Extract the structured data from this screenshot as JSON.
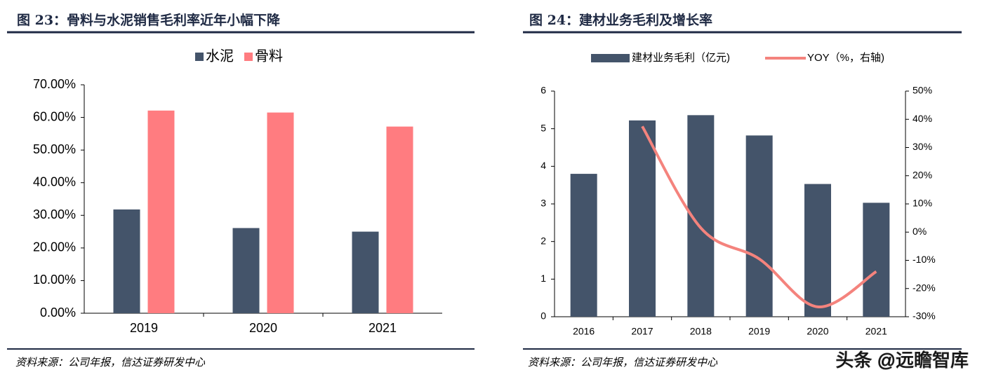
{
  "chart_data": [
    {
      "type": "bar",
      "title": "图 23：骨料与水泥销售毛利率近年小幅下降",
      "categories": [
        "2019",
        "2020",
        "2021"
      ],
      "series": [
        {
          "name": "水泥",
          "color": "#44546a",
          "values": [
            31.8,
            26.1,
            25.0
          ]
        },
        {
          "name": "骨料",
          "color": "#ff7c80",
          "values": [
            62.1,
            61.5,
            57.2
          ]
        }
      ],
      "ylim": [
        0,
        70
      ],
      "yticks": [
        {
          "value": 0,
          "label": "0.00%"
        },
        {
          "value": 10,
          "label": "10.00%"
        },
        {
          "value": 20,
          "label": "20.00%"
        },
        {
          "value": 30,
          "label": "30.00%"
        },
        {
          "value": 40,
          "label": "40.00%"
        },
        {
          "value": 50,
          "label": "50.00%"
        },
        {
          "value": 60,
          "label": "60.00%"
        },
        {
          "value": 70,
          "label": "70.00%"
        }
      ],
      "legend": "top",
      "source": "资料来源：公司年报，信达证券研发中心"
    },
    {
      "type": "bar",
      "title": "图 24：建材业务毛利及增长率",
      "categories": [
        "2016",
        "2017",
        "2018",
        "2019",
        "2020",
        "2021"
      ],
      "series": [
        {
          "name": "建材业务毛利（亿元)",
          "color": "#44546a",
          "values": [
            3.8,
            5.22,
            5.36,
            4.82,
            3.53,
            3.03
          ]
        },
        {
          "name": "YOY（%，右轴)",
          "type": "line",
          "axis": "y2",
          "color": "#f4837d",
          "values": [
            null,
            37.5,
            1.5,
            -9.5,
            -26.5,
            -14
          ]
        }
      ],
      "ylim": [
        0,
        6
      ],
      "yticks": [
        0,
        1,
        2,
        3,
        4,
        5,
        6
      ],
      "y2lim": [
        -30,
        50
      ],
      "y2ticks": [
        {
          "value": -30,
          "label": "-30%"
        },
        {
          "value": -20,
          "label": "-20%"
        },
        {
          "value": -10,
          "label": "-10%"
        },
        {
          "value": 0,
          "label": "0%"
        },
        {
          "value": 10,
          "label": "10%"
        },
        {
          "value": 20,
          "label": "20%"
        },
        {
          "value": 30,
          "label": "30%"
        },
        {
          "value": 40,
          "label": "40%"
        },
        {
          "value": 50,
          "label": "50%"
        }
      ],
      "legend": "top",
      "source": "资料来源：公司年报，信达证券研发中心"
    }
  ],
  "watermark": "头条 @远瞻智库"
}
